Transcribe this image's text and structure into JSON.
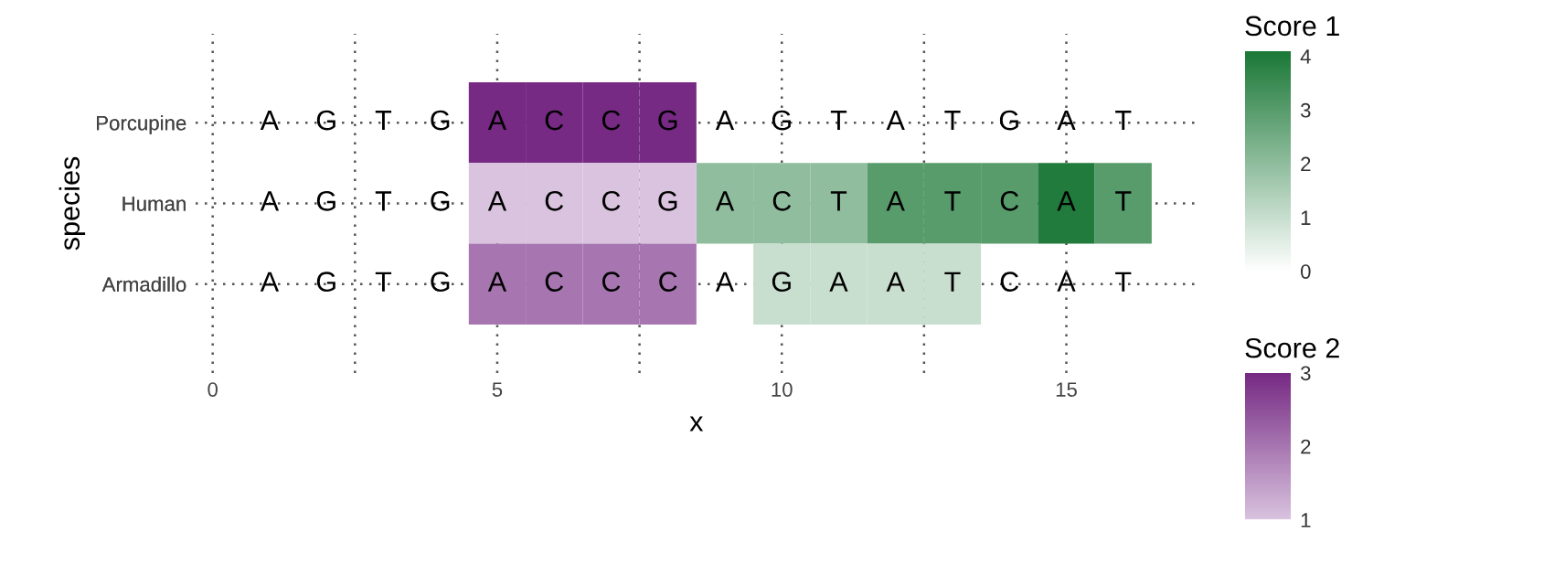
{
  "chart_data": [
    {
      "type": "heatmap",
      "xlabel": "x",
      "ylabel": "species",
      "clabel": "Score 1",
      "x": [
        1,
        2,
        3,
        4,
        5,
        6,
        7,
        8,
        9,
        10,
        11,
        12,
        13,
        14,
        15,
        16
      ],
      "y_categories": [
        "Porcupine",
        "Human",
        "Armadillo"
      ],
      "xlim": [
        -0.3,
        17.3
      ],
      "xticks": [
        0,
        {
          "value": 2.5,
          "label": null
        },
        5,
        {
          "value": 7.5,
          "label": null
        },
        10,
        {
          "value": 12.5,
          "label": null
        },
        15
      ],
      "grid": true,
      "colors": [
        "#ffffff",
        "#1b7837"
      ],
      "clim": [
        0,
        4.1
      ],
      "cticks": [
        0,
        1,
        2,
        3,
        4
      ],
      "cells": [
        [
          null,
          null,
          null,
          null,
          null,
          null,
          null,
          null,
          null,
          null,
          null,
          null,
          null,
          null,
          null,
          null
        ],
        [
          null,
          null,
          null,
          null,
          null,
          null,
          null,
          null,
          2,
          2,
          2,
          3,
          3,
          3,
          4,
          3
        ],
        [
          null,
          null,
          null,
          null,
          null,
          null,
          null,
          null,
          null,
          1,
          1,
          1,
          1,
          null,
          null,
          null
        ]
      ],
      "cell_labels": [
        [
          "A",
          "G",
          "T",
          "G",
          "A",
          "C",
          "C",
          "G",
          "A",
          "G",
          "T",
          "A",
          "T",
          "G",
          "A",
          "T"
        ],
        [
          "A",
          "G",
          "T",
          "G",
          "A",
          "C",
          "C",
          "G",
          "A",
          "C",
          "T",
          "A",
          "T",
          "C",
          "A",
          "T"
        ],
        [
          "A",
          "G",
          "T",
          "G",
          "A",
          "C",
          "C",
          "C",
          "A",
          "G",
          "A",
          "A",
          "T",
          "C",
          "A",
          "T"
        ]
      ]
    },
    {
      "type": "heatmap",
      "clabel": "Score 2",
      "x": [
        1,
        2,
        3,
        4,
        5,
        6,
        7,
        8,
        9,
        10,
        11,
        12,
        13,
        14,
        15,
        16
      ],
      "y_categories": [
        "Porcupine",
        "Human",
        "Armadillo"
      ],
      "xlim": [
        -0.3,
        17.3
      ],
      "colors": [
        "#d9c3df",
        "#762a83"
      ],
      "clim": [
        1,
        3
      ],
      "cticks": [
        1,
        2,
        3
      ],
      "cells": [
        [
          null,
          null,
          null,
          null,
          3,
          3,
          3,
          3,
          null,
          null,
          null,
          null,
          null,
          null,
          null,
          null
        ],
        [
          null,
          null,
          null,
          null,
          1,
          1,
          1,
          1,
          null,
          null,
          null,
          null,
          null,
          null,
          null,
          null
        ],
        [
          null,
          null,
          null,
          null,
          2,
          2,
          2,
          2,
          null,
          null,
          null,
          null,
          null,
          null,
          null,
          null
        ]
      ]
    }
  ]
}
